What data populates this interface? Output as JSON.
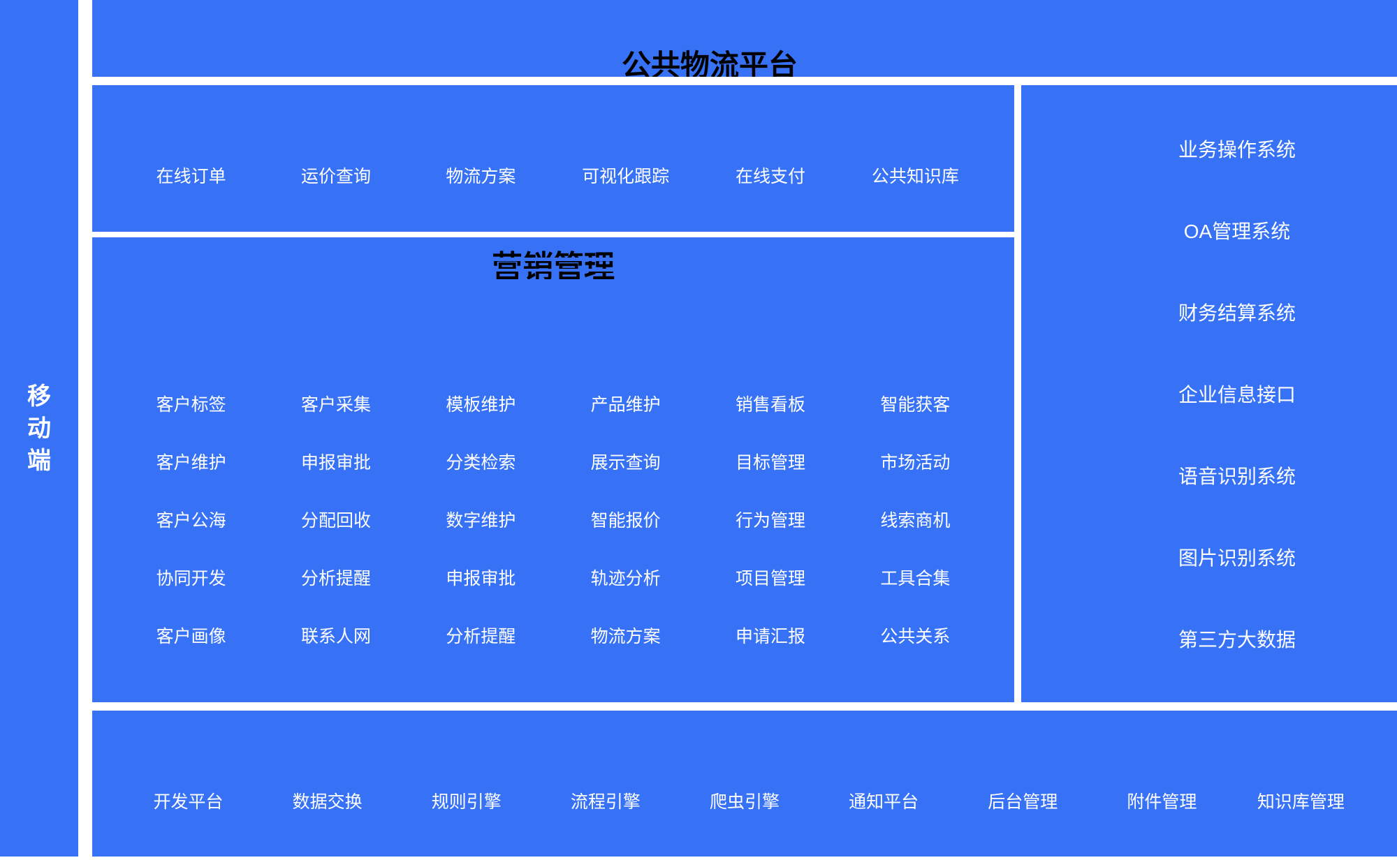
{
  "colors": {
    "panel": "#3772F6",
    "item_text": "#FFFFFF",
    "title_text": "#000000"
  },
  "left_bar": {
    "label": "移动端"
  },
  "top_bar": {
    "title": "公共物流平台"
  },
  "quick_menu": {
    "items": [
      "在线订单",
      "运价查询",
      "物流方案",
      "可视化跟踪",
      "在线支付",
      "公共知识库"
    ]
  },
  "marketing": {
    "title": "营销管理",
    "columns": 6,
    "cells": [
      "客户标签",
      "客户采集",
      "模板维护",
      "产品维护",
      "销售看板",
      "智能获客",
      "客户维护",
      "申报审批",
      "分类检索",
      "展示查询",
      "目标管理",
      "市场活动",
      "客户公海",
      "分配回收",
      "数字维护",
      "智能报价",
      "行为管理",
      "线索商机",
      "协同开发",
      "分析提醒",
      "申报审批",
      "轨迹分析",
      "项目管理",
      "工具合集",
      "客户画像",
      "联系人网",
      "分析提醒",
      "物流方案",
      "申请汇报",
      "公共关系"
    ]
  },
  "right_panel": {
    "items": [
      "业务操作系统",
      "OA管理系统",
      "财务结算系统",
      "企业信息接口",
      "语音识别系统",
      "图片识别系统",
      "第三方大数据"
    ]
  },
  "bottom_bar": {
    "items": [
      "开发平台",
      "数据交换",
      "规则引擎",
      "流程引擎",
      "爬虫引擎",
      "通知平台",
      "后台管理",
      "附件管理",
      "知识库管理"
    ]
  }
}
